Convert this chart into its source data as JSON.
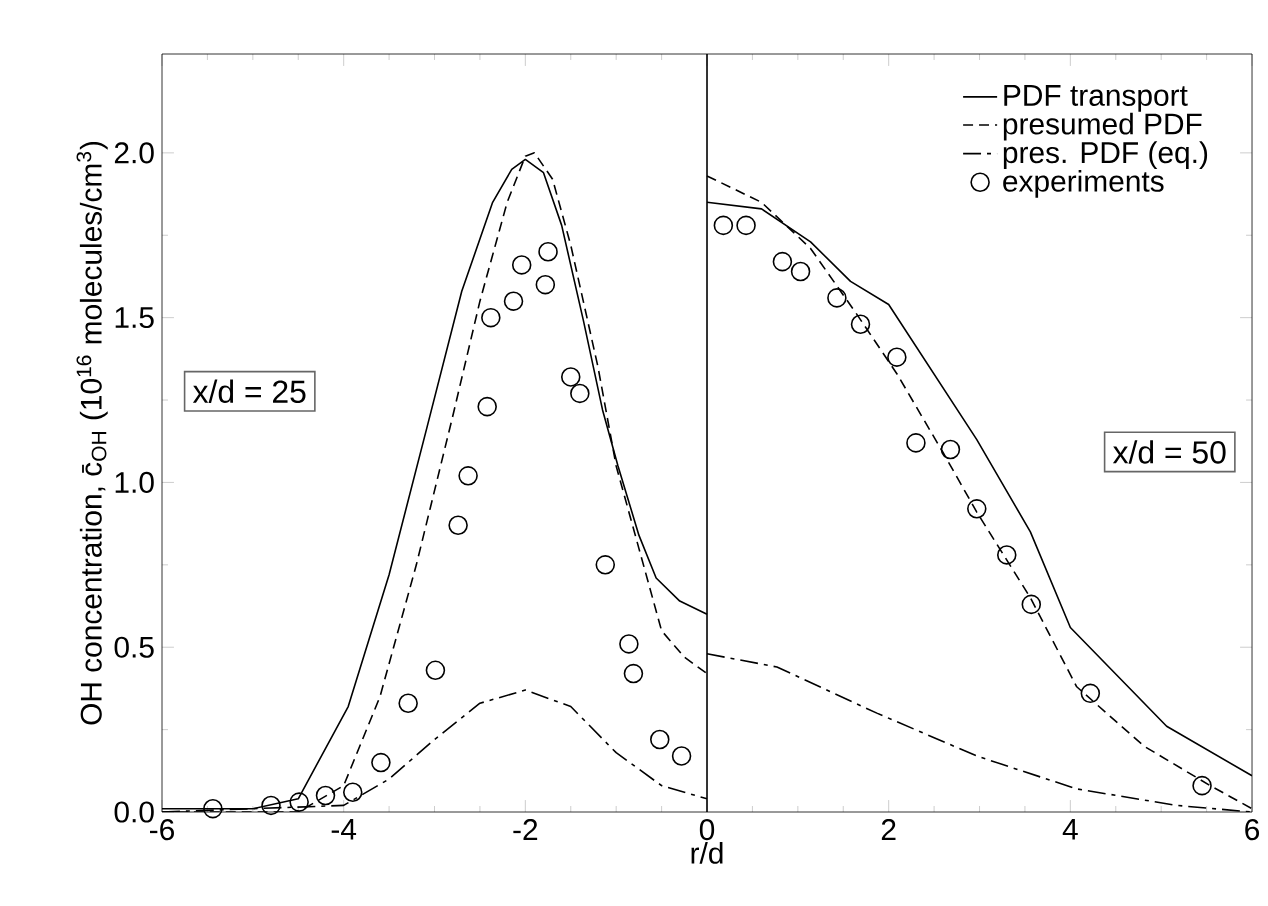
{
  "chart_data": {
    "type": "line",
    "xlabel": "r/d",
    "ylabel": "OH concentration, c̄$_{OH}$ (10$^{16}$ molecules/cm$^{3}$)",
    "xlim": [
      -6,
      6
    ],
    "ylim": [
      0,
      2.3
    ],
    "xticks": [
      -6,
      -4,
      -2,
      0,
      2,
      4,
      6
    ],
    "yticks": [
      {
        "value": 0,
        "label": "0.0"
      },
      {
        "value": 0.5,
        "label": "0.5"
      },
      {
        "value": 1,
        "label": "1.0"
      },
      {
        "value": 1.5,
        "label": "1.5"
      },
      {
        "value": 2,
        "label": "2.0"
      }
    ],
    "grid": false,
    "legend": "top right",
    "series": [
      {
        "name": "PDF transport",
        "color": "#000000",
        "line_style": "solid",
        "x": [
          -6,
          -5,
          -4.5,
          -3.95,
          -3.5,
          -3.08,
          -2.7,
          -2.36,
          -2.15,
          -2,
          -1.8,
          -1.6,
          -1.36,
          -1.15,
          -0.98,
          -0.75,
          -0.56,
          -0.3,
          0,
          null,
          0,
          0.6,
          1.14,
          1.58,
          2,
          2.97,
          3.56,
          4,
          5.06,
          6
        ],
        "values": [
          0.01,
          0.01,
          0.04,
          0.32,
          0.72,
          1.17,
          1.58,
          1.85,
          1.95,
          1.98,
          1.94,
          1.78,
          1.49,
          1.22,
          1.05,
          0.84,
          0.71,
          0.64,
          0.6,
          null,
          1.85,
          1.83,
          1.73,
          1.61,
          1.54,
          1.13,
          0.85,
          0.56,
          0.26,
          0.11
        ]
      },
      {
        "name": "presumed PDF",
        "color": "#000000",
        "line_style": "dashed",
        "x": [
          -6,
          -4.5,
          -4,
          -3.6,
          -3.2,
          -2.8,
          -2.5,
          -2.2,
          -2,
          -1.9,
          -1.7,
          -1.5,
          -1.2,
          -1,
          -0.75,
          -0.5,
          -0.25,
          0,
          null,
          0,
          0.6,
          1.14,
          1.65,
          2.09,
          2.6,
          2.97,
          3.56,
          4.07,
          4.81,
          5.54,
          6
        ],
        "values": [
          0,
          0,
          0.08,
          0.35,
          0.75,
          1.2,
          1.55,
          1.85,
          1.99,
          2,
          1.92,
          1.72,
          1.35,
          1.05,
          0.8,
          0.55,
          0.47,
          0.42,
          null,
          1.93,
          1.85,
          1.71,
          1.51,
          1.33,
          1.09,
          0.91,
          0.65,
          0.38,
          0.2,
          0.08,
          0.01
        ]
      },
      {
        "name": "pres. PDF (eq.)",
        "color": "#000000",
        "line_style": "dashdot",
        "x": [
          -6,
          -4,
          -3.5,
          -3,
          -2.5,
          -2,
          -1.5,
          -1,
          -0.5,
          0,
          null,
          0,
          0.77,
          1.87,
          2.97,
          4.07,
          5.17,
          6
        ],
        "values": [
          0,
          0.02,
          0.1,
          0.22,
          0.33,
          0.37,
          0.32,
          0.18,
          0.08,
          0.04,
          null,
          0.48,
          0.44,
          0.3,
          0.17,
          0.07,
          0.02,
          0
        ]
      },
      {
        "name": "experiments",
        "type": "scatter",
        "marker": "circle",
        "color": "#000000",
        "x": [
          -5.44,
          -4.8,
          -4.49,
          -4.2,
          -3.9,
          -3.59,
          -3.29,
          -2.99,
          -2.74,
          -2.63,
          -2.42,
          -2.38,
          -2.13,
          -2.04,
          -1.78,
          -1.75,
          -1.5,
          -1.4,
          -1.12,
          -0.86,
          -0.81,
          -0.52,
          -0.28,
          0.18,
          0.43,
          0.83,
          1.03,
          1.43,
          1.69,
          2.09,
          2.3,
          2.68,
          2.97,
          3.3,
          3.57,
          4.22,
          5.45
        ],
        "values": [
          0.01,
          0.02,
          0.03,
          0.05,
          0.06,
          0.15,
          0.33,
          0.43,
          0.87,
          1.02,
          1.23,
          1.5,
          1.55,
          1.66,
          1.6,
          1.7,
          1.32,
          1.27,
          0.75,
          0.51,
          0.42,
          0.22,
          0.17,
          1.78,
          1.78,
          1.67,
          1.64,
          1.56,
          1.48,
          1.38,
          1.12,
          1.1,
          0.92,
          0.78,
          0.63,
          0.36,
          0.08
        ]
      }
    ],
    "ref_lines": [
      {
        "axis": "x",
        "value": 0,
        "color": "#000000",
        "line_style": "solid"
      }
    ],
    "annotations": [
      "x/d = 25",
      "x/d = 50"
    ]
  }
}
